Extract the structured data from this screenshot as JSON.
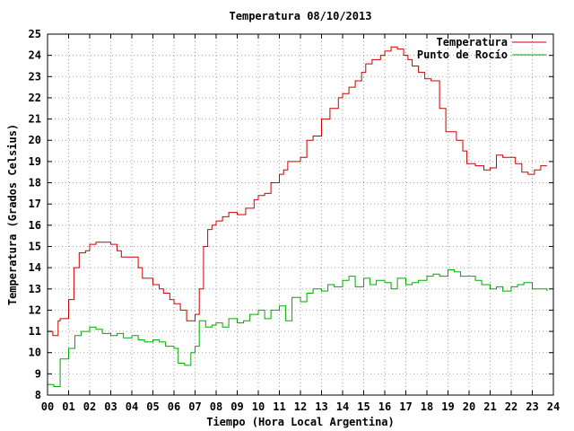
{
  "chart_data": {
    "type": "line",
    "title": "Temperatura 08/10/2013",
    "xlabel": "Tiempo (Hora Local Argentina)",
    "ylabel": "Temperatura (Grados Celsius)",
    "xlim": [
      0,
      24
    ],
    "ylim": [
      8,
      25
    ],
    "xticks": [
      0,
      1,
      2,
      3,
      4,
      5,
      6,
      7,
      8,
      9,
      10,
      11,
      12,
      13,
      14,
      15,
      16,
      17,
      18,
      19,
      20,
      21,
      22,
      23,
      24
    ],
    "xtick_labels": [
      "00",
      "01",
      "02",
      "03",
      "04",
      "05",
      "06",
      "07",
      "08",
      "09",
      "10",
      "11",
      "12",
      "13",
      "14",
      "15",
      "16",
      "17",
      "18",
      "19",
      "20",
      "21",
      "22",
      "23",
      "24"
    ],
    "yticks": [
      8,
      9,
      10,
      11,
      12,
      13,
      14,
      15,
      16,
      17,
      18,
      19,
      20,
      21,
      22,
      23,
      24,
      25
    ],
    "grid": true,
    "legend_position": "top-right",
    "series": [
      {
        "name": "Temperatura",
        "color": "#cc0000",
        "x": [
          0.0,
          0.25,
          0.5,
          0.6,
          1.0,
          1.25,
          1.5,
          1.8,
          2.0,
          2.3,
          2.5,
          3.0,
          3.3,
          3.5,
          4.0,
          4.3,
          4.5,
          5.0,
          5.3,
          5.5,
          5.8,
          6.0,
          6.3,
          6.6,
          7.0,
          7.2,
          7.4,
          7.6,
          7.8,
          8.0,
          8.3,
          8.6,
          9.0,
          9.4,
          9.8,
          10.0,
          10.3,
          10.6,
          11.0,
          11.2,
          11.4,
          11.8,
          12.0,
          12.3,
          12.6,
          13.0,
          13.4,
          13.8,
          14.0,
          14.3,
          14.6,
          14.9,
          15.1,
          15.4,
          15.8,
          16.0,
          16.3,
          16.6,
          16.9,
          17.1,
          17.3,
          17.6,
          17.9,
          18.2,
          18.6,
          18.9,
          19.2,
          19.4,
          19.7,
          19.9,
          20.3,
          20.7,
          21.0,
          21.3,
          21.6,
          21.9,
          22.2,
          22.5,
          22.8,
          23.1,
          23.4,
          23.7
        ],
        "y": [
          11.0,
          10.8,
          11.5,
          11.6,
          12.5,
          14.0,
          14.7,
          14.8,
          15.1,
          15.2,
          15.2,
          15.1,
          14.8,
          14.5,
          14.5,
          14.0,
          13.5,
          13.2,
          13.0,
          12.8,
          12.5,
          12.3,
          12.0,
          11.5,
          11.8,
          13.0,
          15.0,
          15.8,
          16.0,
          16.2,
          16.4,
          16.6,
          16.5,
          16.8,
          17.2,
          17.4,
          17.5,
          18.0,
          18.4,
          18.6,
          19.0,
          19.0,
          19.2,
          20.0,
          20.2,
          21.0,
          21.5,
          22.0,
          22.2,
          22.5,
          22.8,
          23.2,
          23.6,
          23.8,
          24.0,
          24.2,
          24.4,
          24.3,
          24.0,
          23.8,
          23.5,
          23.2,
          22.9,
          22.8,
          21.5,
          20.4,
          20.4,
          20.0,
          19.5,
          18.9,
          18.8,
          18.6,
          18.7,
          19.3,
          19.2,
          19.2,
          18.9,
          18.5,
          18.4,
          18.6,
          18.8,
          18.8
        ]
      },
      {
        "name": "Punto de Rocío",
        "color": "#00aa00",
        "x": [
          0.0,
          0.3,
          0.6,
          1.0,
          1.3,
          1.6,
          2.0,
          2.3,
          2.6,
          3.0,
          3.3,
          3.6,
          4.0,
          4.3,
          4.6,
          5.0,
          5.3,
          5.6,
          6.0,
          6.2,
          6.5,
          6.8,
          7.0,
          7.2,
          7.5,
          7.8,
          8.0,
          8.3,
          8.6,
          9.0,
          9.3,
          9.6,
          10.0,
          10.3,
          10.6,
          11.0,
          11.3,
          11.6,
          12.0,
          12.3,
          12.6,
          13.0,
          13.3,
          13.6,
          14.0,
          14.3,
          14.6,
          15.0,
          15.3,
          15.6,
          16.0,
          16.3,
          16.6,
          17.0,
          17.3,
          17.6,
          18.0,
          18.3,
          18.6,
          19.0,
          19.3,
          19.6,
          20.0,
          20.3,
          20.6,
          21.0,
          21.3,
          21.6,
          22.0,
          22.3,
          22.6,
          23.0,
          23.3,
          23.7
        ],
        "y": [
          8.5,
          8.4,
          9.7,
          10.2,
          10.8,
          11.0,
          11.2,
          11.1,
          10.9,
          10.8,
          10.9,
          10.7,
          10.8,
          10.6,
          10.5,
          10.6,
          10.5,
          10.3,
          10.2,
          9.5,
          9.4,
          10.0,
          10.3,
          11.5,
          11.2,
          11.3,
          11.4,
          11.2,
          11.6,
          11.4,
          11.5,
          11.8,
          12.0,
          11.6,
          12.0,
          12.2,
          11.5,
          12.6,
          12.4,
          12.8,
          13.0,
          12.9,
          13.2,
          13.1,
          13.4,
          13.6,
          13.1,
          13.5,
          13.2,
          13.4,
          13.3,
          13.0,
          13.5,
          13.2,
          13.3,
          13.4,
          13.6,
          13.7,
          13.6,
          13.9,
          13.8,
          13.6,
          13.6,
          13.4,
          13.2,
          13.0,
          13.1,
          12.9,
          13.1,
          13.2,
          13.3,
          13.0,
          13.0,
          12.9
        ]
      }
    ]
  }
}
